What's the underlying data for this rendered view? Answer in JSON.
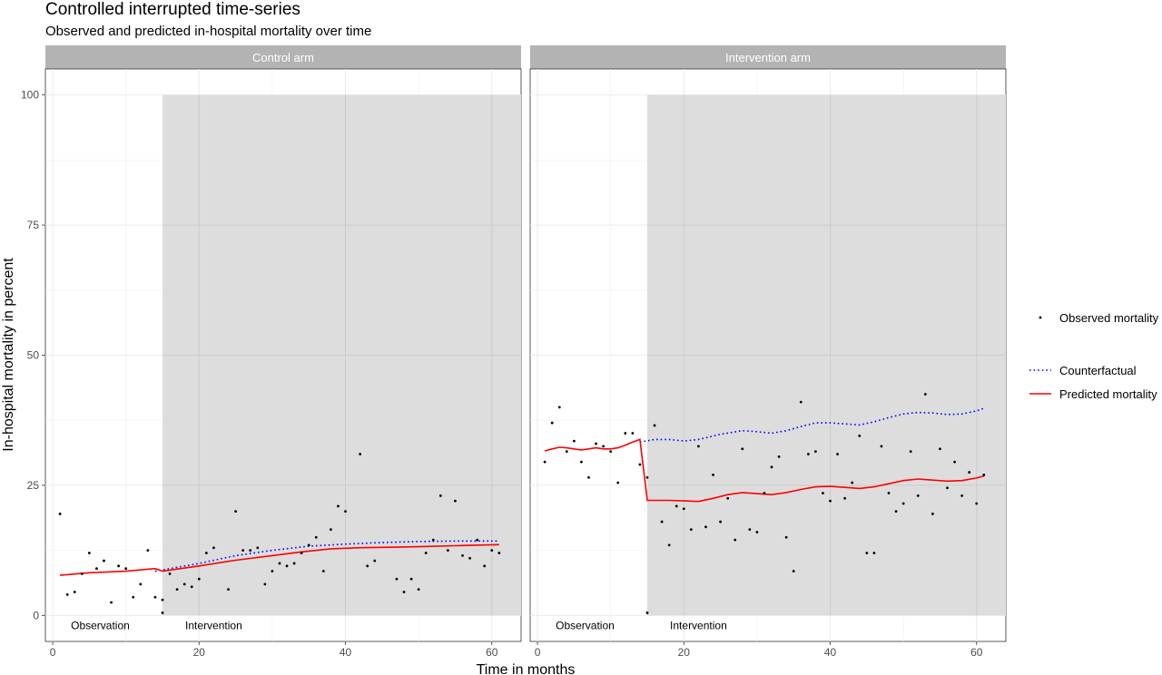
{
  "chart_data": {
    "type": "scatter",
    "title": "Controlled interrupted time-series",
    "subtitle": "Observed and predicted in-hospital mortality over time",
    "xlabel": "Time in months",
    "ylabel": "In-hospital mortality in percent",
    "xlim": [
      -1,
      64
    ],
    "ylim": [
      -5,
      105
    ],
    "x_ticks": [
      0,
      20,
      40,
      60
    ],
    "y_ticks": [
      0,
      25,
      50,
      75,
      100
    ],
    "grid": true,
    "legend_position": "right",
    "legend": {
      "observed": "Observed mortality",
      "counterfactual": "Counterfactual",
      "predicted": "Predicted mortality"
    },
    "colors": {
      "observed": "#000000",
      "counterfactual": "#0000ff",
      "predicted": "#ff0000",
      "intervention_shade": "#dddddd",
      "strip": "#b3b3b3"
    },
    "panels": [
      {
        "name": "Control arm",
        "intervention_start": 15,
        "intervention_end": 64,
        "intervention_top": 100,
        "period_labels": [
          {
            "text": "Observation",
            "x": 6.5
          },
          {
            "text": "Intervention",
            "x": 22
          }
        ],
        "observed": [
          [
            1,
            19.5
          ],
          [
            2,
            4
          ],
          [
            3,
            4.5
          ],
          [
            4,
            8
          ],
          [
            5,
            12
          ],
          [
            6,
            9
          ],
          [
            7,
            10.5
          ],
          [
            8,
            2.5
          ],
          [
            9,
            9.5
          ],
          [
            10,
            9
          ],
          [
            11,
            3.5
          ],
          [
            12,
            6
          ],
          [
            13,
            12.5
          ],
          [
            14,
            3.5
          ],
          [
            15,
            3
          ],
          [
            15,
            0.5
          ],
          [
            16,
            8
          ],
          [
            17,
            5
          ],
          [
            18,
            6
          ],
          [
            19,
            5.5
          ],
          [
            20,
            7
          ],
          [
            21,
            12
          ],
          [
            22,
            13
          ],
          [
            24,
            5
          ],
          [
            25,
            20
          ],
          [
            26,
            12.5
          ],
          [
            27,
            12.5
          ],
          [
            28,
            13
          ],
          [
            29,
            6
          ],
          [
            30,
            8.5
          ],
          [
            31,
            10
          ],
          [
            32,
            9.5
          ],
          [
            33,
            10
          ],
          [
            34,
            12
          ],
          [
            35,
            13.5
          ],
          [
            36,
            15
          ],
          [
            37,
            8.5
          ],
          [
            38,
            16.5
          ],
          [
            39,
            21
          ],
          [
            40,
            20
          ],
          [
            42,
            31
          ],
          [
            43,
            9.5
          ],
          [
            44,
            10.5
          ],
          [
            47,
            7
          ],
          [
            48,
            4.5
          ],
          [
            49,
            7
          ],
          [
            50,
            5
          ],
          [
            51,
            12
          ],
          [
            52,
            14.5
          ],
          [
            53,
            23
          ],
          [
            54,
            12.5
          ],
          [
            55,
            22
          ],
          [
            56,
            11.5
          ],
          [
            57,
            11
          ],
          [
            58,
            14.5
          ],
          [
            59,
            9.5
          ],
          [
            60,
            12.5
          ],
          [
            61,
            12
          ]
        ],
        "counterfactual": [
          [
            14,
            8.5
          ],
          [
            20,
            10
          ],
          [
            25,
            11.5
          ],
          [
            30,
            12.5
          ],
          [
            35,
            13.3
          ],
          [
            40,
            13.7
          ],
          [
            45,
            14
          ],
          [
            50,
            14.2
          ],
          [
            55,
            14.3
          ],
          [
            61,
            14.3
          ]
        ],
        "predicted": [
          [
            1,
            7.7
          ],
          [
            5,
            8.2
          ],
          [
            10,
            8.5
          ],
          [
            14,
            9
          ],
          [
            15,
            8.5
          ],
          [
            20,
            9.5
          ],
          [
            25,
            10.6
          ],
          [
            30,
            11.5
          ],
          [
            34,
            12.2
          ],
          [
            38,
            12.8
          ],
          [
            42,
            13
          ],
          [
            46,
            13.1
          ],
          [
            50,
            13.2
          ],
          [
            55,
            13.4
          ],
          [
            61,
            13.6
          ]
        ]
      },
      {
        "name": "Intervention arm",
        "intervention_start": 15,
        "intervention_end": 64,
        "intervention_top": 100,
        "period_labels": [
          {
            "text": "Observation",
            "x": 6.5
          },
          {
            "text": "Intervention",
            "x": 22
          }
        ],
        "observed": [
          [
            1,
            29.5
          ],
          [
            2,
            37
          ],
          [
            3,
            40
          ],
          [
            4,
            31.5
          ],
          [
            5,
            33.5
          ],
          [
            6,
            29.5
          ],
          [
            7,
            26.5
          ],
          [
            8,
            33
          ],
          [
            9,
            32.5
          ],
          [
            10,
            31.5
          ],
          [
            11,
            25.5
          ],
          [
            12,
            35
          ],
          [
            13,
            35
          ],
          [
            14,
            29
          ],
          [
            15,
            26.5
          ],
          [
            15,
            0.5
          ],
          [
            16,
            36.5
          ],
          [
            17,
            18
          ],
          [
            18,
            13.5
          ],
          [
            19,
            21
          ],
          [
            20,
            20.5
          ],
          [
            21,
            16.5
          ],
          [
            22,
            32.5
          ],
          [
            23,
            17
          ],
          [
            24,
            27
          ],
          [
            25,
            18
          ],
          [
            26,
            22.5
          ],
          [
            27,
            14.5
          ],
          [
            28,
            32
          ],
          [
            29,
            16.5
          ],
          [
            30,
            16
          ],
          [
            31,
            23.5
          ],
          [
            32,
            28.5
          ],
          [
            33,
            30.5
          ],
          [
            34,
            15
          ],
          [
            35,
            8.5
          ],
          [
            36,
            41
          ],
          [
            37,
            31
          ],
          [
            38,
            31.5
          ],
          [
            39,
            23.5
          ],
          [
            40,
            22
          ],
          [
            41,
            31
          ],
          [
            42,
            22.5
          ],
          [
            43,
            25.5
          ],
          [
            44,
            34.5
          ],
          [
            45,
            12
          ],
          [
            46,
            12
          ],
          [
            47,
            32.5
          ],
          [
            48,
            23.5
          ],
          [
            49,
            20
          ],
          [
            50,
            21.5
          ],
          [
            51,
            31.5
          ],
          [
            52,
            23
          ],
          [
            53,
            42.5
          ],
          [
            54,
            19.5
          ],
          [
            55,
            32
          ],
          [
            56,
            24.5
          ],
          [
            57,
            29.5
          ],
          [
            58,
            23
          ],
          [
            59,
            27.5
          ],
          [
            60,
            21.5
          ],
          [
            61,
            27
          ]
        ],
        "counterfactual": [
          [
            14,
            33.3
          ],
          [
            16,
            33.8
          ],
          [
            18,
            33.8
          ],
          [
            20,
            33.5
          ],
          [
            22,
            33.8
          ],
          [
            25,
            34.8
          ],
          [
            28,
            35.5
          ],
          [
            30,
            35.3
          ],
          [
            32,
            35
          ],
          [
            34,
            35.5
          ],
          [
            36,
            36.3
          ],
          [
            38,
            37
          ],
          [
            40,
            37
          ],
          [
            42,
            36.8
          ],
          [
            44,
            36.6
          ],
          [
            46,
            37.2
          ],
          [
            48,
            38
          ],
          [
            50,
            38.7
          ],
          [
            52,
            39
          ],
          [
            54,
            38.9
          ],
          [
            56,
            38.6
          ],
          [
            58,
            38.7
          ],
          [
            60,
            39.3
          ],
          [
            61,
            39.8
          ]
        ],
        "predicted": [
          [
            1,
            31.6
          ],
          [
            2,
            32
          ],
          [
            3,
            32.3
          ],
          [
            4,
            32.2
          ],
          [
            5,
            32
          ],
          [
            6,
            31.8
          ],
          [
            7,
            32
          ],
          [
            8,
            32.2
          ],
          [
            9,
            32
          ],
          [
            10,
            32
          ],
          [
            11,
            32.2
          ],
          [
            12,
            32.7
          ],
          [
            13,
            33.3
          ],
          [
            14,
            33.8
          ],
          [
            15,
            22.1
          ],
          [
            16,
            22.1
          ],
          [
            18,
            22.1
          ],
          [
            20,
            22
          ],
          [
            22,
            21.9
          ],
          [
            24,
            22.5
          ],
          [
            26,
            23.2
          ],
          [
            28,
            23.6
          ],
          [
            30,
            23.4
          ],
          [
            32,
            23.2
          ],
          [
            34,
            23.6
          ],
          [
            36,
            24.2
          ],
          [
            38,
            24.7
          ],
          [
            40,
            24.8
          ],
          [
            42,
            24.6
          ],
          [
            44,
            24.4
          ],
          [
            46,
            24.7
          ],
          [
            48,
            25.3
          ],
          [
            50,
            25.9
          ],
          [
            52,
            26.2
          ],
          [
            54,
            26
          ],
          [
            56,
            25.8
          ],
          [
            58,
            25.9
          ],
          [
            60,
            26.4
          ],
          [
            61,
            26.8
          ]
        ]
      }
    ]
  }
}
